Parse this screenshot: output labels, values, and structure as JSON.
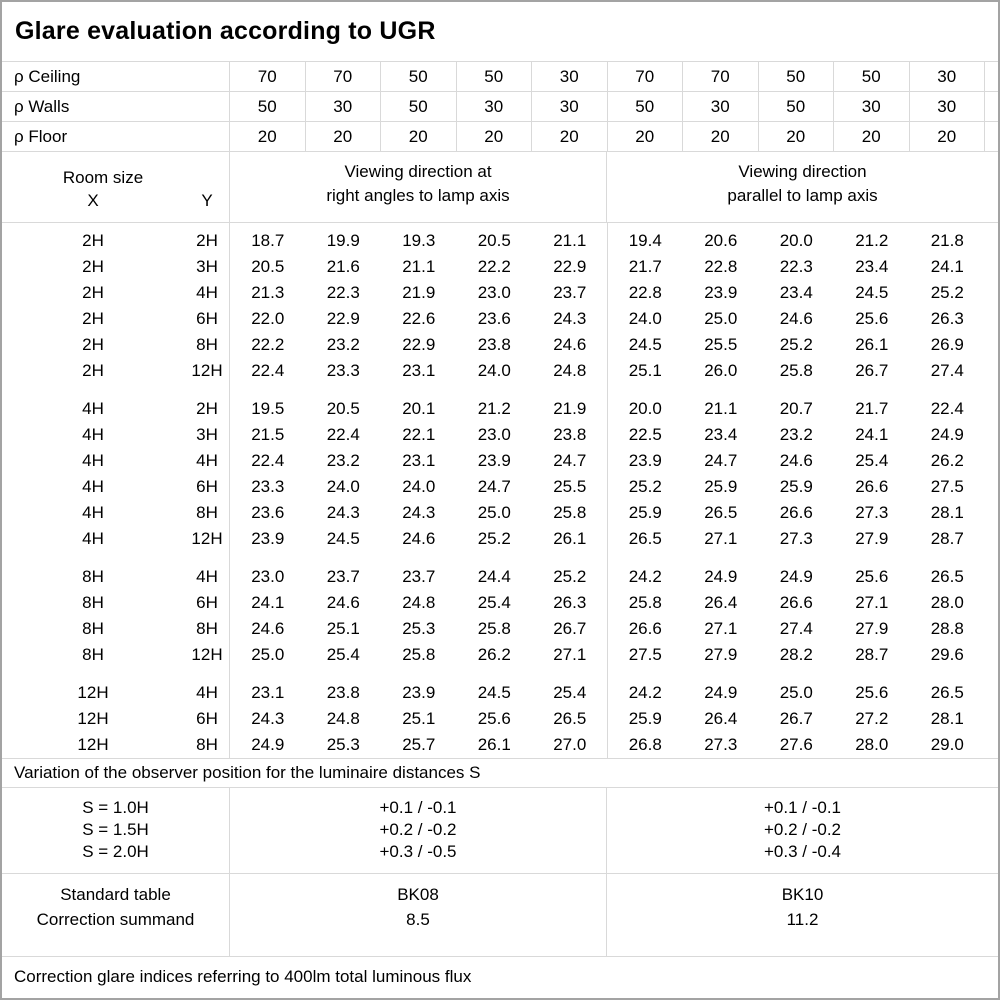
{
  "title": "Glare evaluation according to UGR",
  "colors": {
    "grid_line": "#d9d9d9",
    "outer_border": "#a3a3a3",
    "text": "#000000",
    "background": "#ffffff"
  },
  "reflectance_rows": [
    {
      "label": "ρ Ceiling",
      "values": [
        "70",
        "70",
        "50",
        "50",
        "30",
        "70",
        "70",
        "50",
        "50",
        "30"
      ]
    },
    {
      "label": "ρ Walls",
      "values": [
        "50",
        "30",
        "50",
        "30",
        "30",
        "50",
        "30",
        "50",
        "30",
        "30"
      ]
    },
    {
      "label": "ρ Floor",
      "values": [
        "20",
        "20",
        "20",
        "20",
        "20",
        "20",
        "20",
        "20",
        "20",
        "20"
      ]
    }
  ],
  "room_header": {
    "title": "Room size",
    "x": "X",
    "y": "Y"
  },
  "viewing_direction_right_angle": {
    "line1": "Viewing direction at",
    "line2": "right angles to lamp axis"
  },
  "viewing_direction_parallel": {
    "line1": "Viewing direction",
    "line2": "parallel to lamp axis"
  },
  "ugr_groups": [
    {
      "rows": [
        {
          "x": "2H",
          "y": "2H",
          "right_angle": [
            "18.7",
            "19.9",
            "19.3",
            "20.5",
            "21.1"
          ],
          "parallel": [
            "19.4",
            "20.6",
            "20.0",
            "21.2",
            "21.8"
          ]
        },
        {
          "x": "2H",
          "y": "3H",
          "right_angle": [
            "20.5",
            "21.6",
            "21.1",
            "22.2",
            "22.9"
          ],
          "parallel": [
            "21.7",
            "22.8",
            "22.3",
            "23.4",
            "24.1"
          ]
        },
        {
          "x": "2H",
          "y": "4H",
          "right_angle": [
            "21.3",
            "22.3",
            "21.9",
            "23.0",
            "23.7"
          ],
          "parallel": [
            "22.8",
            "23.9",
            "23.4",
            "24.5",
            "25.2"
          ]
        },
        {
          "x": "2H",
          "y": "6H",
          "right_angle": [
            "22.0",
            "22.9",
            "22.6",
            "23.6",
            "24.3"
          ],
          "parallel": [
            "24.0",
            "25.0",
            "24.6",
            "25.6",
            "26.3"
          ]
        },
        {
          "x": "2H",
          "y": "8H",
          "right_angle": [
            "22.2",
            "23.2",
            "22.9",
            "23.8",
            "24.6"
          ],
          "parallel": [
            "24.5",
            "25.5",
            "25.2",
            "26.1",
            "26.9"
          ]
        },
        {
          "x": "2H",
          "y": "12H",
          "right_angle": [
            "22.4",
            "23.3",
            "23.1",
            "24.0",
            "24.8"
          ],
          "parallel": [
            "25.1",
            "26.0",
            "25.8",
            "26.7",
            "27.4"
          ]
        }
      ]
    },
    {
      "rows": [
        {
          "x": "4H",
          "y": "2H",
          "right_angle": [
            "19.5",
            "20.5",
            "20.1",
            "21.2",
            "21.9"
          ],
          "parallel": [
            "20.0",
            "21.1",
            "20.7",
            "21.7",
            "22.4"
          ]
        },
        {
          "x": "4H",
          "y": "3H",
          "right_angle": [
            "21.5",
            "22.4",
            "22.1",
            "23.0",
            "23.8"
          ],
          "parallel": [
            "22.5",
            "23.4",
            "23.2",
            "24.1",
            "24.9"
          ]
        },
        {
          "x": "4H",
          "y": "4H",
          "right_angle": [
            "22.4",
            "23.2",
            "23.1",
            "23.9",
            "24.7"
          ],
          "parallel": [
            "23.9",
            "24.7",
            "24.6",
            "25.4",
            "26.2"
          ]
        },
        {
          "x": "4H",
          "y": "6H",
          "right_angle": [
            "23.3",
            "24.0",
            "24.0",
            "24.7",
            "25.5"
          ],
          "parallel": [
            "25.2",
            "25.9",
            "25.9",
            "26.6",
            "27.5"
          ]
        },
        {
          "x": "4H",
          "y": "8H",
          "right_angle": [
            "23.6",
            "24.3",
            "24.3",
            "25.0",
            "25.8"
          ],
          "parallel": [
            "25.9",
            "26.5",
            "26.6",
            "27.3",
            "28.1"
          ]
        },
        {
          "x": "4H",
          "y": "12H",
          "right_angle": [
            "23.9",
            "24.5",
            "24.6",
            "25.2",
            "26.1"
          ],
          "parallel": [
            "26.5",
            "27.1",
            "27.3",
            "27.9",
            "28.7"
          ]
        }
      ]
    },
    {
      "rows": [
        {
          "x": "8H",
          "y": "4H",
          "right_angle": [
            "23.0",
            "23.7",
            "23.7",
            "24.4",
            "25.2"
          ],
          "parallel": [
            "24.2",
            "24.9",
            "24.9",
            "25.6",
            "26.5"
          ]
        },
        {
          "x": "8H",
          "y": "6H",
          "right_angle": [
            "24.1",
            "24.6",
            "24.8",
            "25.4",
            "26.3"
          ],
          "parallel": [
            "25.8",
            "26.4",
            "26.6",
            "27.1",
            "28.0"
          ]
        },
        {
          "x": "8H",
          "y": "8H",
          "right_angle": [
            "24.6",
            "25.1",
            "25.3",
            "25.8",
            "26.7"
          ],
          "parallel": [
            "26.6",
            "27.1",
            "27.4",
            "27.9",
            "28.8"
          ]
        },
        {
          "x": "8H",
          "y": "12H",
          "right_angle": [
            "25.0",
            "25.4",
            "25.8",
            "26.2",
            "27.1"
          ],
          "parallel": [
            "27.5",
            "27.9",
            "28.2",
            "28.7",
            "29.6"
          ]
        }
      ]
    },
    {
      "rows": [
        {
          "x": "12H",
          "y": "4H",
          "right_angle": [
            "23.1",
            "23.8",
            "23.9",
            "24.5",
            "25.4"
          ],
          "parallel": [
            "24.2",
            "24.9",
            "25.0",
            "25.6",
            "26.5"
          ]
        },
        {
          "x": "12H",
          "y": "6H",
          "right_angle": [
            "24.3",
            "24.8",
            "25.1",
            "25.6",
            "26.5"
          ],
          "parallel": [
            "25.9",
            "26.4",
            "26.7",
            "27.2",
            "28.1"
          ]
        },
        {
          "x": "12H",
          "y": "8H",
          "right_angle": [
            "24.9",
            "25.3",
            "25.7",
            "26.1",
            "27.0"
          ],
          "parallel": [
            "26.8",
            "27.3",
            "27.6",
            "28.0",
            "29.0"
          ]
        }
      ]
    }
  ],
  "variation_note": "Variation of the observer position for the luminaire distances S",
  "s_variation_rows": [
    {
      "label": "S = 1.0H",
      "right_angle": "+0.1 / -0.1",
      "parallel": "+0.1 / -0.1"
    },
    {
      "label": "S = 1.5H",
      "right_angle": "+0.2 / -0.2",
      "parallel": "+0.2 / -0.2"
    },
    {
      "label": "S = 2.0H",
      "right_angle": "+0.3 / -0.5",
      "parallel": "+0.3 / -0.4"
    }
  ],
  "summary_rows": [
    {
      "label": "Standard table",
      "right_angle": "BK08",
      "parallel": "BK10"
    },
    {
      "label": "Correction summand",
      "right_angle": "8.5",
      "parallel": "11.2"
    }
  ],
  "footer_note": "Correction glare indices referring to 400lm total luminous flux"
}
